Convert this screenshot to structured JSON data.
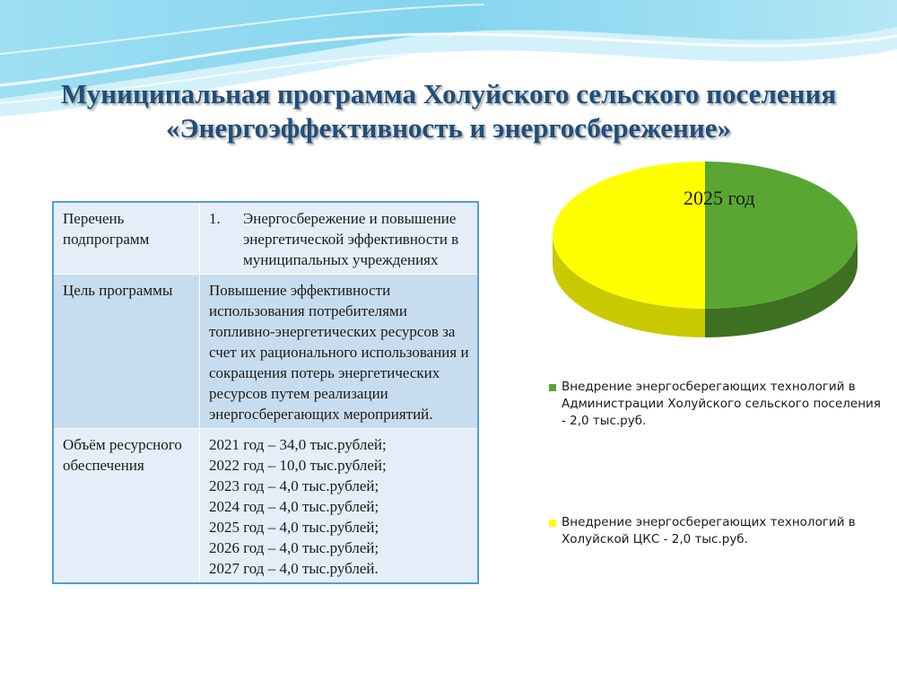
{
  "title": {
    "line1": "Муниципальная программа Холуйского сельского поселения",
    "line2": "«Энергоэффективность и энергосбережение»"
  },
  "table": {
    "rows": [
      {
        "label": "Перечень подпрограмм",
        "items": [
          {
            "num": "1.",
            "text": "Энергосбережение и повышение энергетической эффективности в муниципальных учреждениях"
          }
        ]
      },
      {
        "label": "Цель программы",
        "text": "Повышение эффективности использования потребителями топливно-энергетических ресурсов за счет их рационального использования и сокращения потерь энергетических ресурсов путем реализации энергосберегающих мероприятий."
      },
      {
        "label": "Объём ресурсного обеспечения",
        "lines": [
          "2021 год – 34,0 тыс.рублей;",
          "2022 год – 10,0 тыс.рублей;",
          "2023 год – 4,0 тыс.рублей;",
          "2024 год – 4,0 тыс.рублей;",
          "2025 год – 4,0 тыс.рублей;",
          "2026 год – 4,0 тыс.рублей;",
          "2027 год – 4,0 тыс.рублей."
        ]
      }
    ]
  },
  "chart_data": {
    "type": "pie",
    "title": "2025 год",
    "unit": "тыс.руб.",
    "slices": [
      {
        "name": "Внедрение энергосберегающих технологий в Администрации Холуйского сельского поселения - 2,0 тыс.руб.",
        "value": 2.0,
        "color": "#5aa632",
        "side_color": "#3d7021"
      },
      {
        "name": "Внедрение энергосберегающих технологий в Холуйской ЦКС - 2,0 тыс.руб.",
        "value": 2.0,
        "color": "#ffff00",
        "side_color": "#c9c900"
      }
    ],
    "legend_position": "bottom-right"
  },
  "colors": {
    "title": "#1f4e79",
    "table_border": "#4f9fd6",
    "row_light": "#e4eef8",
    "row_dark": "#c8dcef",
    "wave": "#5bc8e8"
  }
}
